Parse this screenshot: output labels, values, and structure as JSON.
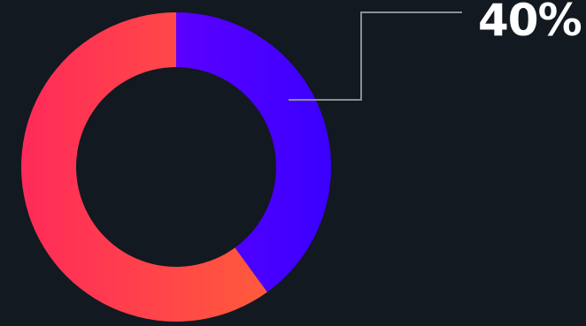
{
  "chart_data": {
    "type": "pie",
    "style": "donut",
    "slices": [
      {
        "value": 40,
        "color_start": "#5b00ff",
        "color_end": "#3a00ff"
      },
      {
        "value": 60,
        "color_start": "#ff5a3c",
        "color_end": "#ff2a5a"
      }
    ],
    "callout": {
      "text": "40%"
    },
    "colors": {
      "background": "#121920",
      "leader_line": "#8a8f95",
      "label": "#ffffff"
    }
  }
}
